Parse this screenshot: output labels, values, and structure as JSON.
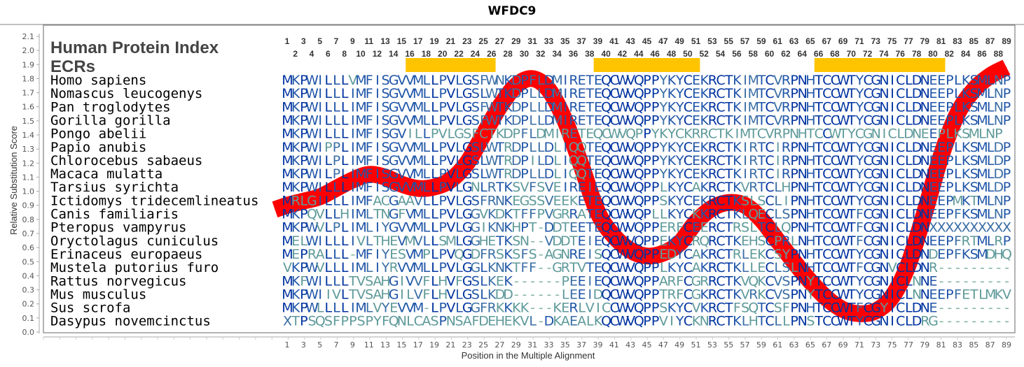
{
  "chart_data": {
    "type": "line",
    "title": "WFDC9",
    "xlabel": "Position in the Multiple Alignment",
    "ylabel": "Relative Substitution Score",
    "xlim": [
      1,
      89
    ],
    "ylim": [
      0.0,
      2.1
    ],
    "y_ticks": [
      "0.0",
      "0.1",
      "0.2",
      "0.3",
      "0.4",
      "0.5",
      "0.6",
      "0.7",
      "0.8",
      "0.9",
      "1.0",
      "1.1",
      "1.2",
      "1.3",
      "1.4",
      "1.5",
      "1.6",
      "1.7",
      "1.8",
      "1.9",
      "2.0",
      "2.1"
    ],
    "x_ticks": [
      1,
      3,
      5,
      7,
      9,
      11,
      13,
      15,
      17,
      19,
      21,
      23,
      25,
      27,
      29,
      31,
      33,
      35,
      37,
      39,
      41,
      43,
      45,
      47,
      49,
      51,
      53,
      55,
      57,
      59,
      61,
      63,
      65,
      67,
      69,
      71,
      73,
      75,
      77,
      79,
      81,
      83,
      85,
      87,
      89
    ],
    "legend": {
      "human_protein_index": "Human Protein Index",
      "ecrs": "ECRs"
    },
    "index_top": [
      1,
      3,
      5,
      7,
      9,
      11,
      13,
      15,
      17,
      19,
      21,
      23,
      25,
      27,
      29,
      31,
      33,
      35,
      37,
      39,
      41,
      43,
      45,
      47,
      49,
      51,
      53,
      55,
      57,
      59,
      61,
      63,
      65,
      67,
      69,
      71,
      73,
      75,
      77,
      79,
      81,
      83,
      85,
      87,
      89
    ],
    "index_bottom": [
      2,
      4,
      6,
      8,
      10,
      12,
      14,
      16,
      18,
      20,
      22,
      24,
      26,
      28,
      30,
      32,
      34,
      36,
      38,
      40,
      42,
      44,
      46,
      48,
      50,
      52,
      54,
      56,
      58,
      60,
      62,
      64,
      66,
      68,
      70,
      72,
      74,
      76,
      78,
      80,
      82,
      84,
      86,
      88
    ],
    "ecr_regions": [
      [
        16,
        26
      ],
      [
        39,
        51
      ],
      [
        66,
        81
      ]
    ],
    "series": [
      {
        "name": "Relative Substitution Score",
        "color": "#ff0000",
        "x": [
          -0.5,
          1,
          3,
          5,
          7,
          9,
          11,
          13,
          15,
          17,
          19,
          21,
          23,
          25,
          27,
          29,
          31,
          33,
          35,
          37,
          39,
          41,
          43,
          45,
          47,
          49,
          51,
          53,
          55,
          57,
          59,
          61,
          63,
          65,
          67,
          69,
          71,
          73,
          75,
          77,
          79,
          81,
          83,
          85,
          87,
          89
        ],
        "y": [
          0.87,
          0.9,
          0.93,
          0.96,
          1.02,
          1.08,
          1.12,
          1.1,
          1.05,
          1.02,
          1.03,
          1.08,
          1.2,
          1.4,
          1.6,
          1.75,
          1.8,
          1.72,
          1.5,
          1.18,
          0.85,
          0.68,
          0.58,
          0.54,
          0.56,
          0.63,
          0.78,
          0.88,
          0.92,
          0.9,
          0.8,
          0.65,
          0.5,
          0.36,
          0.24,
          0.16,
          0.13,
          0.15,
          0.25,
          0.48,
          0.85,
          1.25,
          1.55,
          1.72,
          1.82,
          1.88
        ]
      }
    ],
    "alignment": [
      {
        "species": "Homo sapiens",
        "seq": "MKPWILLLVMFISGVVMLLPVLGSFWNKDPFLDMIRETEQCWVQPPYKYCEKRCTKIMTCVRPNHTCCWTYCGNICLDNEEPLKSMLNP"
      },
      {
        "species": "Nomascus leucogenys",
        "seq": "MKPWILLLIMFISGVVMLLPVLGSLWTKDPLLDMIRETEQCWVQPPYKYCEKRCTKIMTCVRPNHTCCWTYCGNICLDNEEPLKSMLNP"
      },
      {
        "species": "Pan troglodytes",
        "seq": "MKPWILLLIMFISGVVMLLPVLGSFWTKDPLLDMIRETEQCWVQPPYKYCEKRCTKIMTCVRPNHTCCWTYCGNICLDNEEPLKSMLNP"
      },
      {
        "species": "Gorilla gorilla",
        "seq": "MKPWILLLIMFISGVVMLLPVLGSFWTKDPLLDMIRETEQCWVQPPYKYCEKRCTKIMTCVRPNHTCCWTYCGNICLDNEEPLKSMLNP"
      },
      {
        "species": "Pongo abelii",
        "seq": "MKPWILLLIMFISGVILLPVLGSFCTKDPFLDMIRETEQCWVQPPYKYCKRRCTKIMTCVRPNHTCCWTYCGNICLDNEEPLKSMLNP"
      },
      {
        "species": "Papio anubis",
        "seq": "MKPWIPPLIMFISGVVMLLPVLGSLWTRDPLLDLIQQTEQCWVQPPYKYCEKRCTKIRTCIRPNHTCCWTYCGNICLDNEEPLKSMLDP"
      },
      {
        "species": "Chlorocebus sabaeus",
        "seq": "MKPWILPLIMFISGVVMLLPVLGSLWTRDPILDLIQQTEQCWVQPPYKYCEKRCTKIRTCIRPNHTCCWTYCGNICLDNEEPLKSMLDP"
      },
      {
        "species": "Macaca mulatta",
        "seq": "MKPWILPLIMFISGVVMLLPVLGSLWTRDPLLDLIQQTEQCWVQPPYKYCEKRCTKIRTCIRPNHTCCWTYCGNICLDNEEPLKSMLDP"
      },
      {
        "species": "Tarsius syrichta",
        "seq": "MKPWILLLIMFISGVVMLLPVLGNLRTKSVFSVEIREIEQCWVQPPLKYCAKRCTKVRTCLHPNHTCCWTYCGNICLDNEEPLKSMLDP"
      },
      {
        "species": "Ictidomys tridecemlineatus",
        "seq": "MRLGILLLIMFACGAAVLLPVLGSFRNKEGSSVEEKETEQCWVQPPSKYCEKRCTKSLSCLIPNHTCCWTYCGNICLDNEEPMKTMLNP"
      },
      {
        "species": "Canis familiaris",
        "seq": "MKPQVLLHIMLTNGFVMLLPVLGGVKDKTFFPVGRRATEQCWVQPLLKYCKKRCTKLQECLSPNHTCCWTFCGNICLDNEEPFKSMLNP"
      },
      {
        "species": "Pteropus vampyrus",
        "seq": "MKPWVLPLIMLIYGVVMLLPVLGGIKNKHPT-DDTEETEQCWVQPPERFCEERCTRSLTCLQPNHTCCWTFCGNICLDNXXXXXXXXXX"
      },
      {
        "species": "Oryctolagus cuniculus",
        "seq": "MELWILLLIVLTHEVMVLLSMLGGHETKSN--VDDTEIEQCWVQPPEKYCRQRCTKEHSCPRLNHTCCWTFCGNICLDNEEPFRTMLRP"
      },
      {
        "species": "Erinaceus europaeus",
        "seq": "MEPRALLL-MFIYESVMPLPVQGDFRSKSFS-AGNREISQCWVQPPEDYCAKRCTRLEKCSYPNHTCCWTYCGNICLDNDEPFKSMDHQ"
      },
      {
        "species": "Mustela putorius furo",
        "seq": "VKPWVLLLIMLIYRVVMLLPVLGGLKNKTFF--GRTVTEQCWVQPPLKYCAKRCTKLLECLSLNHTCCWTFCGNVCLDNR---------"
      },
      {
        "species": "Rattus norvegicus",
        "seq": "MKFWILLLTVSAHGIVVFLHVFGSLKEK------PEEIEQCWVQPPARFCGRRCTKVQKCVSPNYTCCWTYCGNICLNNE---------"
      },
      {
        "species": "Mus musculus",
        "seq": "MKPWIIVLTVSAHGILVFLHVLGSLKDD------LEEIDQCWVQPPTRFCGKRCTKVRKCVSPNYTCCWTYCGNICLNNEEPFETLMKV"
      },
      {
        "species": "Sus scrofa",
        "seq": "MKPWLLLLIMLVYEVVM-LPVLGGFRKKKK---KERLVICCWVQPPSKYCVKRCTFSQTCSFPNHTCCWTFCGYICLDNE---------"
      },
      {
        "species": "Dasypus novemcinctus",
        "seq": "XTPSQSFPPSPYFQNLCASPNSAFDEHEKVL-DKAEALKQCWVQPPVIYCKNRCTKLHTCLLPNSTCCWTYCGNICLDRG---------"
      }
    ],
    "colors": {
      "ecr_bar": "#ffc400",
      "line": "#ff0000",
      "conserved": "#0033a0",
      "moderate": "#3a6ea5",
      "variable": "#7fb59e",
      "frame": "#808080"
    }
  }
}
